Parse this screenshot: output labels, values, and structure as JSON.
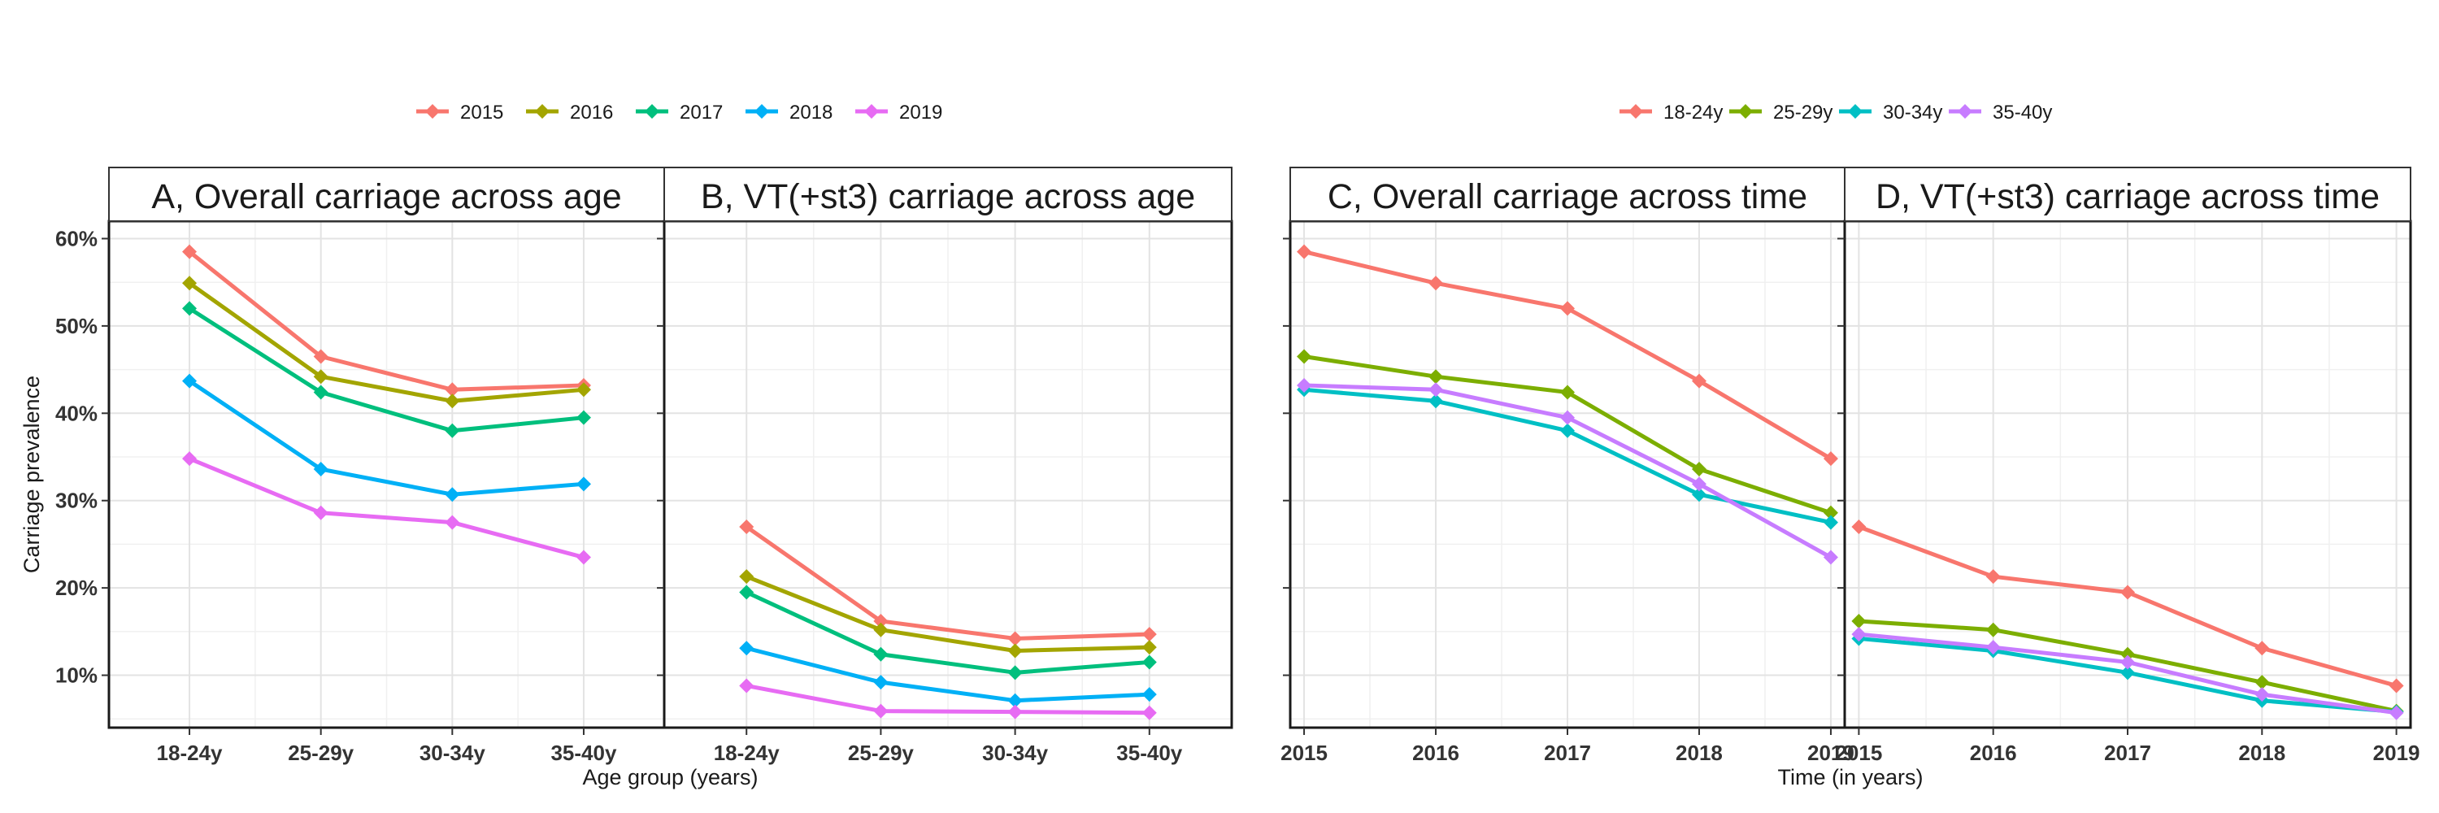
{
  "chart_data": [
    {
      "type": "line",
      "title": "A, Overall carriage across age",
      "xlabel": "Age group (years)",
      "ylabel": "Carriage prevalence",
      "categories": [
        "18-24y",
        "25-29y",
        "30-34y",
        "35-40y"
      ],
      "ylim": [
        0.04,
        0.62
      ],
      "yticks": [
        "10%",
        "20%",
        "30%",
        "40%",
        "50%",
        "60%"
      ],
      "series": [
        {
          "name": "2015",
          "color": "#F8766D",
          "values": [
            0.585,
            0.465,
            0.427,
            0.432
          ]
        },
        {
          "name": "2016",
          "color": "#A3A500",
          "values": [
            0.549,
            0.442,
            0.414,
            0.427
          ]
        },
        {
          "name": "2017",
          "color": "#00BF7D",
          "values": [
            0.52,
            0.424,
            0.38,
            0.395
          ]
        },
        {
          "name": "2018",
          "color": "#00B0F6",
          "values": [
            0.437,
            0.336,
            0.307,
            0.319
          ]
        },
        {
          "name": "2019",
          "color": "#E76BF3",
          "values": [
            0.348,
            0.286,
            0.275,
            0.235
          ]
        }
      ],
      "grid": true
    },
    {
      "type": "line",
      "title": "B, VT(+st3) carriage across age",
      "xlabel": "Age group (years)",
      "categories": [
        "18-24y",
        "25-29y",
        "30-34y",
        "35-40y"
      ],
      "ylim": [
        0.04,
        0.62
      ],
      "series": [
        {
          "name": "2015",
          "color": "#F8766D",
          "values": [
            0.27,
            0.162,
            0.142,
            0.147
          ]
        },
        {
          "name": "2016",
          "color": "#A3A500",
          "values": [
            0.213,
            0.152,
            0.128,
            0.132
          ]
        },
        {
          "name": "2017",
          "color": "#00BF7D",
          "values": [
            0.195,
            0.124,
            0.103,
            0.115
          ]
        },
        {
          "name": "2018",
          "color": "#00B0F6",
          "values": [
            0.131,
            0.092,
            0.071,
            0.078
          ]
        },
        {
          "name": "2019",
          "color": "#E76BF3",
          "values": [
            0.088,
            0.059,
            0.058,
            0.057
          ]
        }
      ],
      "grid": true
    },
    {
      "type": "line",
      "title": "C, Overall carriage across time",
      "xlabel": "Time (in years)",
      "categories": [
        "2015",
        "2016",
        "2017",
        "2018",
        "2019"
      ],
      "ylim": [
        0.04,
        0.62
      ],
      "series": [
        {
          "name": "18-24y",
          "color": "#F8766D",
          "values": [
            0.585,
            0.549,
            0.52,
            0.437,
            0.348
          ]
        },
        {
          "name": "25-29y",
          "color": "#7CAE00",
          "values": [
            0.465,
            0.442,
            0.424,
            0.336,
            0.286
          ]
        },
        {
          "name": "30-34y",
          "color": "#00BFC4",
          "values": [
            0.427,
            0.414,
            0.38,
            0.307,
            0.275
          ]
        },
        {
          "name": "35-40y",
          "color": "#C77CFF",
          "values": [
            0.432,
            0.427,
            0.395,
            0.319,
            0.235
          ]
        }
      ],
      "grid": true
    },
    {
      "type": "line",
      "title": "D, VT(+st3) carriage across time",
      "xlabel": "Time (in years)",
      "categories": [
        "2015",
        "2016",
        "2017",
        "2018",
        "2019"
      ],
      "ylim": [
        0.04,
        0.62
      ],
      "series": [
        {
          "name": "18-24y",
          "color": "#F8766D",
          "values": [
            0.27,
            0.213,
            0.195,
            0.131,
            0.088
          ]
        },
        {
          "name": "25-29y",
          "color": "#7CAE00",
          "values": [
            0.162,
            0.152,
            0.124,
            0.092,
            0.059
          ]
        },
        {
          "name": "30-34y",
          "color": "#00BFC4",
          "values": [
            0.142,
            0.128,
            0.103,
            0.071,
            0.058
          ]
        },
        {
          "name": "35-40y",
          "color": "#C77CFF",
          "values": [
            0.147,
            0.132,
            0.115,
            0.078,
            0.057
          ]
        }
      ],
      "grid": true
    }
  ],
  "legends": [
    {
      "placement": "top-left",
      "entries": [
        {
          "label": "2015",
          "color": "#F8766D"
        },
        {
          "label": "2016",
          "color": "#A3A500"
        },
        {
          "label": "2017",
          "color": "#00BF7D"
        },
        {
          "label": "2018",
          "color": "#00B0F6"
        },
        {
          "label": "2019",
          "color": "#E76BF3"
        }
      ]
    },
    {
      "placement": "top-right",
      "entries": [
        {
          "label": "18-24y",
          "color": "#F8766D"
        },
        {
          "label": "25-29y",
          "color": "#7CAE00"
        },
        {
          "label": "30-34y",
          "color": "#00BFC4"
        },
        {
          "label": "35-40y",
          "color": "#C77CFF"
        }
      ]
    }
  ]
}
